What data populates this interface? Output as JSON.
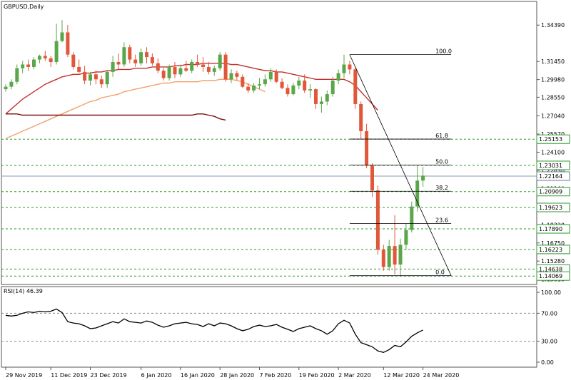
{
  "chart_data": {
    "type": "candlestick",
    "symbol_label": "GBPUSD,Daily",
    "price_axis": {
      "min": 1.1385,
      "max": 1.355,
      "tick_labels": [
        "1.34390",
        "1.31450",
        "1.29980",
        "1.28550",
        "1.27040",
        "1.25570",
        "1.24100",
        "1.22630",
        "1.21160",
        "1.19620",
        "1.18220",
        "1.16750",
        "1.15280",
        "1.13810"
      ],
      "tick_values": [
        1.3439,
        1.3145,
        1.2998,
        1.2855,
        1.2704,
        1.2557,
        1.241,
        1.2263,
        1.2116,
        1.1962,
        1.1822,
        1.1675,
        1.1528,
        1.1381
      ]
    },
    "date_labels": [
      "29 Nov 2019",
      "11 Dec 2019",
      "23 Dec 2019",
      "6 Jan 2020",
      "16 Jan 2020",
      "28 Jan 2020",
      "7 Feb 2020",
      "19 Feb 2020",
      "2 Mar 2020",
      "12 Mar 2020",
      "24 Mar 2020"
    ],
    "price_boxes": [
      {
        "label": "1.25153",
        "value": 1.25153,
        "style": "green"
      },
      {
        "label": "1.23031",
        "value": 1.23031,
        "style": "green"
      },
      {
        "label": "1.22164",
        "value": 1.22164,
        "style": "current"
      },
      {
        "label": "1.20909",
        "value": 1.20909,
        "style": "green"
      },
      {
        "label": "1.19623",
        "value": 1.19623,
        "style": "green"
      },
      {
        "label": "1.17890",
        "value": 1.1789,
        "style": "green"
      },
      {
        "label": "1.16223",
        "value": 1.16223,
        "style": "green"
      },
      {
        "label": "1.14638",
        "value": 1.14638,
        "style": "green"
      },
      {
        "label": "1.14069",
        "value": 1.14069,
        "style": "green"
      }
    ],
    "fibonacci": {
      "high": 1.32,
      "low": 1.141,
      "levels": [
        {
          "label": "100.0",
          "ratio": 1.0
        },
        {
          "label": "61.8",
          "ratio": 0.618
        },
        {
          "label": "50.0",
          "ratio": 0.5
        },
        {
          "label": "38.2",
          "ratio": 0.382
        },
        {
          "label": "23.6",
          "ratio": 0.236
        },
        {
          "label": "0.0",
          "ratio": 0.0
        }
      ]
    },
    "candles": [
      [
        1.292,
        1.296,
        1.29,
        1.294
      ],
      [
        1.294,
        1.3,
        1.292,
        1.298
      ],
      [
        1.298,
        1.312,
        1.296,
        1.309
      ],
      [
        1.309,
        1.315,
        1.305,
        1.312
      ],
      [
        1.312,
        1.316,
        1.307,
        1.31
      ],
      [
        1.31,
        1.318,
        1.308,
        1.316
      ],
      [
        1.316,
        1.32,
        1.313,
        1.319
      ],
      [
        1.319,
        1.323,
        1.315,
        1.317
      ],
      [
        1.317,
        1.319,
        1.31,
        1.314
      ],
      [
        1.314,
        1.345,
        1.312,
        1.331
      ],
      [
        1.331,
        1.348,
        1.33,
        1.338
      ],
      [
        1.338,
        1.344,
        1.318,
        1.32
      ],
      [
        1.32,
        1.322,
        1.308,
        1.31
      ],
      [
        1.31,
        1.316,
        1.305,
        1.306
      ],
      [
        1.306,
        1.311,
        1.296,
        1.299
      ],
      [
        1.299,
        1.306,
        1.295,
        1.304
      ],
      [
        1.304,
        1.307,
        1.296,
        1.3
      ],
      [
        1.3,
        1.303,
        1.293,
        1.296
      ],
      [
        1.296,
        1.307,
        1.293,
        1.306
      ],
      [
        1.306,
        1.319,
        1.302,
        1.314
      ],
      [
        1.314,
        1.321,
        1.308,
        1.312
      ],
      [
        1.312,
        1.33,
        1.31,
        1.326
      ],
      [
        1.326,
        1.328,
        1.313,
        1.316
      ],
      [
        1.316,
        1.32,
        1.31,
        1.313
      ],
      [
        1.313,
        1.325,
        1.311,
        1.322
      ],
      [
        1.322,
        1.326,
        1.313,
        1.318
      ],
      [
        1.318,
        1.321,
        1.311,
        1.313
      ],
      [
        1.313,
        1.317,
        1.305,
        1.307
      ],
      [
        1.307,
        1.309,
        1.299,
        1.301
      ],
      [
        1.301,
        1.312,
        1.299,
        1.31
      ],
      [
        1.31,
        1.314,
        1.301,
        1.304
      ],
      [
        1.304,
        1.312,
        1.302,
        1.309
      ],
      [
        1.309,
        1.315,
        1.306,
        1.307
      ],
      [
        1.307,
        1.316,
        1.305,
        1.314
      ],
      [
        1.314,
        1.32,
        1.31,
        1.312
      ],
      [
        1.312,
        1.318,
        1.306,
        1.31
      ],
      [
        1.31,
        1.314,
        1.304,
        1.306
      ],
      [
        1.306,
        1.311,
        1.303,
        1.309
      ],
      [
        1.309,
        1.322,
        1.307,
        1.32
      ],
      [
        1.32,
        1.322,
        1.298,
        1.3
      ],
      [
        1.3,
        1.308,
        1.297,
        1.305
      ],
      [
        1.305,
        1.307,
        1.299,
        1.302
      ],
      [
        1.302,
        1.304,
        1.293,
        1.294
      ],
      [
        1.294,
        1.297,
        1.289,
        1.291
      ],
      [
        1.291,
        1.297,
        1.289,
        1.295
      ],
      [
        1.295,
        1.301,
        1.292,
        1.296
      ],
      [
        1.296,
        1.304,
        1.294,
        1.3
      ],
      [
        1.3,
        1.309,
        1.298,
        1.306
      ],
      [
        1.306,
        1.308,
        1.297,
        1.298
      ],
      [
        1.298,
        1.301,
        1.292,
        1.293
      ],
      [
        1.293,
        1.296,
        1.286,
        1.288
      ],
      [
        1.288,
        1.297,
        1.287,
        1.295
      ],
      [
        1.295,
        1.302,
        1.292,
        1.299
      ],
      [
        1.299,
        1.304,
        1.289,
        1.291
      ],
      [
        1.291,
        1.296,
        1.285,
        1.292
      ],
      [
        1.292,
        1.293,
        1.276,
        1.28
      ],
      [
        1.28,
        1.286,
        1.273,
        1.282
      ],
      [
        1.282,
        1.291,
        1.279,
        1.288
      ],
      [
        1.288,
        1.302,
        1.286,
        1.299
      ],
      [
        1.299,
        1.308,
        1.296,
        1.305
      ],
      [
        1.305,
        1.32,
        1.301,
        1.312
      ],
      [
        1.312,
        1.315,
        1.304,
        1.308
      ],
      [
        1.308,
        1.31,
        1.276,
        1.28
      ],
      [
        1.28,
        1.282,
        1.252,
        1.258
      ],
      [
        1.258,
        1.264,
        1.228,
        1.23
      ],
      [
        1.23,
        1.232,
        1.205,
        1.21
      ],
      [
        1.21,
        1.214,
        1.158,
        1.162
      ],
      [
        1.162,
        1.166,
        1.145,
        1.148
      ],
      [
        1.148,
        1.17,
        1.145,
        1.165
      ],
      [
        1.165,
        1.19,
        1.142,
        1.15
      ],
      [
        1.15,
        1.171,
        1.141,
        1.166
      ],
      [
        1.166,
        1.183,
        1.162,
        1.178
      ],
      [
        1.178,
        1.201,
        1.176,
        1.197
      ],
      [
        1.197,
        1.23,
        1.193,
        1.218
      ],
      [
        1.218,
        1.229,
        1.213,
        1.222
      ]
    ],
    "series": [
      {
        "name": "",
        "color": "#c2302c",
        "values": [
          1.272,
          1.276,
          1.28,
          1.284,
          1.287,
          1.29,
          1.293,
          1.296,
          1.298,
          1.3,
          1.302,
          1.303,
          1.304,
          1.304,
          1.305,
          1.305,
          1.306,
          1.306,
          1.307,
          1.307,
          1.308,
          1.308,
          1.308,
          1.309,
          1.309,
          1.309,
          1.31,
          1.31,
          1.31,
          1.31,
          1.311,
          1.311,
          1.312,
          1.312,
          1.312,
          1.313,
          1.313,
          1.313,
          1.313,
          1.313,
          1.312,
          1.312,
          1.311,
          1.31,
          1.309,
          1.308,
          1.307,
          1.307,
          1.306,
          1.306,
          1.305,
          1.304,
          1.303,
          1.302,
          1.301,
          1.3,
          1.3,
          1.3,
          1.3,
          1.3,
          1.3,
          1.298,
          1.295,
          1.29,
          1.285,
          1.28,
          1.275
        ]
      },
      {
        "name": "",
        "color": "#f4a06a",
        "values": [
          1.252,
          1.254,
          1.256,
          1.258,
          1.26,
          1.262,
          1.264,
          1.266,
          1.268,
          1.27,
          1.272,
          1.274,
          1.276,
          1.278,
          1.28,
          1.282,
          1.283,
          1.285,
          1.286,
          1.287,
          1.288,
          1.29,
          1.291,
          1.292,
          1.293,
          1.294,
          1.295,
          1.296,
          1.297,
          1.297,
          1.298,
          1.298,
          1.298,
          1.298,
          1.298,
          1.299,
          1.299,
          1.299,
          1.3,
          1.3,
          1.3,
          1.299,
          1.298,
          1.296,
          1.294,
          1.292,
          1.29
        ]
      },
      {
        "name": "",
        "color": "#7a1010",
        "values": [
          1.272,
          1.272,
          1.272,
          1.271,
          1.271,
          1.271,
          1.271,
          1.271,
          1.271,
          1.271,
          1.271,
          1.271,
          1.271,
          1.271,
          1.271,
          1.271,
          1.271,
          1.271,
          1.271,
          1.271,
          1.271,
          1.271,
          1.271,
          1.271,
          1.271,
          1.271,
          1.271,
          1.271,
          1.271,
          1.271,
          1.271,
          1.271,
          1.271,
          1.271,
          1.272,
          1.272,
          1.271,
          1.27,
          1.268,
          1.267
        ]
      }
    ],
    "rsi": {
      "label": "RSI(14) 46.39",
      "min": 0,
      "max": 100,
      "tick_labels": [
        "100.00",
        "70.00",
        "30.00",
        "0.00"
      ],
      "tick_values": [
        100,
        70,
        30,
        0
      ],
      "levels": [
        70,
        30
      ],
      "values": [
        67,
        66,
        67,
        70,
        72,
        71,
        73,
        72,
        73,
        76,
        71,
        58,
        56,
        55,
        52,
        48,
        49,
        52,
        55,
        58,
        56,
        62,
        58,
        57,
        56,
        59,
        57,
        53,
        50,
        52,
        55,
        56,
        57,
        55,
        54,
        51,
        55,
        52,
        56,
        55,
        52,
        48,
        45,
        47,
        51,
        53,
        51,
        52,
        54,
        50,
        47,
        44,
        48,
        50,
        52,
        48,
        45,
        40,
        45,
        55,
        60,
        56,
        40,
        28,
        25,
        22,
        16,
        14,
        18,
        24,
        22,
        29,
        37,
        42,
        46
      ]
    }
  }
}
